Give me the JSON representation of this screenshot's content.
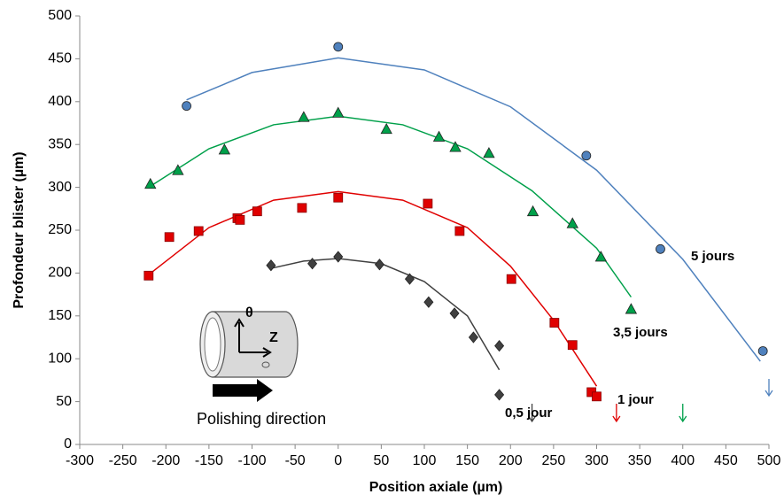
{
  "chart_data": {
    "type": "scatter",
    "x_label": "Position axiale (µm)",
    "y_label": "Profondeur blister (µm)",
    "xlim": [
      -300,
      500
    ],
    "xticks": [
      -300,
      -250,
      -200,
      -150,
      -100,
      -50,
      0,
      50,
      100,
      150,
      200,
      250,
      300,
      350,
      400,
      450,
      500
    ],
    "ylim": [
      0,
      500
    ],
    "yticks": [
      0,
      50,
      100,
      150,
      200,
      250,
      300,
      350,
      400,
      450,
      500
    ],
    "grid": false,
    "series": [
      {
        "name": "5 jours",
        "color": "#4f81bd",
        "marker": "circle",
        "x": [
          -176,
          0,
          288,
          374,
          493
        ],
        "values": [
          395,
          464,
          337,
          228,
          109
        ],
        "fit_x": [
          -176,
          -100,
          0,
          100,
          200,
          300,
          400,
          490
        ],
        "fit_values": [
          402,
          434,
          451,
          437,
          394,
          320,
          216,
          97
        ],
        "arrow_x": 500
      },
      {
        "name": "3,5 jours",
        "color": "#00a04a",
        "marker": "triangle",
        "x": [
          -218,
          -186,
          -132,
          -40,
          0,
          56,
          117,
          136,
          175,
          226,
          272,
          305,
          340
        ],
        "values": [
          304,
          320,
          344,
          382,
          387,
          368,
          359,
          347,
          340,
          272,
          258,
          219,
          158
        ],
        "fit_x": [
          -220,
          -150,
          -75,
          0,
          75,
          150,
          225,
          300,
          340
        ],
        "fit_values": [
          300,
          345,
          373,
          383,
          373,
          345,
          296,
          229,
          172
        ],
        "arrow_x": 400
      },
      {
        "name": "1 jour",
        "color": "#e00000",
        "marker": "square",
        "x": [
          -220,
          -196,
          -162,
          -117,
          -114,
          -94,
          -42,
          0,
          104,
          141,
          201,
          251,
          272,
          294,
          300
        ],
        "values": [
          197,
          242,
          249,
          264,
          262,
          272,
          276,
          288,
          281,
          249,
          193,
          142,
          116,
          61,
          56
        ],
        "fit_x": [
          -220,
          -150,
          -75,
          0,
          75,
          150,
          200,
          250,
          300
        ],
        "fit_values": [
          198,
          253,
          285,
          295,
          285,
          253,
          208,
          145,
          68
        ],
        "arrow_x": 323
      },
      {
        "name": "0,5 jour",
        "color": "#404040",
        "marker": "diamond",
        "x": [
          -78,
          -30,
          0,
          48,
          83,
          105,
          135,
          157,
          187,
          187
        ],
        "values": [
          209,
          211,
          219,
          210,
          193,
          166,
          153,
          125,
          115,
          58
        ],
        "fit_x": [
          -80,
          -40,
          0,
          50,
          100,
          150,
          187
        ],
        "fit_values": [
          205,
          214,
          217,
          211,
          190,
          150,
          87
        ],
        "arrow_x": 225
      }
    ],
    "inset": {
      "theta": "θ",
      "axis": "Z",
      "caption": "Polishing direction"
    }
  }
}
